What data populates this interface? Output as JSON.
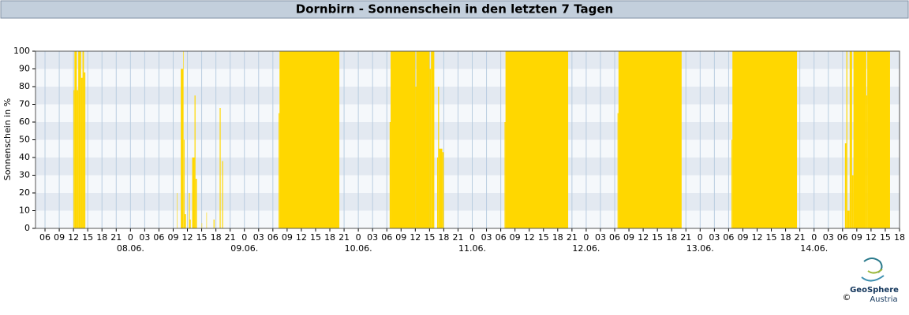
{
  "chart_data": {
    "type": "step-area",
    "title": "Dornbirn - Sonnenschein in den letzten 7 Tagen",
    "y_label": "Sonnenschein in %",
    "color": "#ffd700",
    "grid": true,
    "xlim": [
      -20,
      162
    ],
    "ylim": [
      0,
      100
    ],
    "yticks": [
      0,
      10,
      20,
      30,
      40,
      50,
      60,
      70,
      80,
      90,
      100
    ],
    "xticks": [
      {
        "value": -18,
        "label": "06"
      },
      {
        "value": -15,
        "label": "09"
      },
      {
        "value": -12,
        "label": "12"
      },
      {
        "value": -9,
        "label": "15"
      },
      {
        "value": -6,
        "label": "18"
      },
      {
        "value": -3,
        "label": "21"
      },
      {
        "value": 0,
        "label": "0"
      },
      {
        "value": 3,
        "label": "03"
      },
      {
        "value": 6,
        "label": "06"
      },
      {
        "value": 9,
        "label": "09"
      },
      {
        "value": 12,
        "label": "12"
      },
      {
        "value": 15,
        "label": "15"
      },
      {
        "value": 18,
        "label": "18"
      },
      {
        "value": 21,
        "label": "21"
      },
      {
        "value": 24,
        "label": "0"
      },
      {
        "value": 27,
        "label": "03"
      },
      {
        "value": 30,
        "label": "06"
      },
      {
        "value": 33,
        "label": "09"
      },
      {
        "value": 36,
        "label": "12"
      },
      {
        "value": 39,
        "label": "15"
      },
      {
        "value": 42,
        "label": "18"
      },
      {
        "value": 45,
        "label": "21"
      },
      {
        "value": 48,
        "label": "0"
      },
      {
        "value": 51,
        "label": "03"
      },
      {
        "value": 54,
        "label": "06"
      },
      {
        "value": 57,
        "label": "09"
      },
      {
        "value": 60,
        "label": "12"
      },
      {
        "value": 63,
        "label": "15"
      },
      {
        "value": 66,
        "label": "18"
      },
      {
        "value": 69,
        "label": "21"
      },
      {
        "value": 72,
        "label": "0"
      },
      {
        "value": 75,
        "label": "03"
      },
      {
        "value": 78,
        "label": "06"
      },
      {
        "value": 81,
        "label": "09"
      },
      {
        "value": 84,
        "label": "12"
      },
      {
        "value": 87,
        "label": "15"
      },
      {
        "value": 90,
        "label": "18"
      },
      {
        "value": 93,
        "label": "21"
      },
      {
        "value": 96,
        "label": "0"
      },
      {
        "value": 99,
        "label": "03"
      },
      {
        "value": 102,
        "label": "06"
      },
      {
        "value": 105,
        "label": "09"
      },
      {
        "value": 108,
        "label": "12"
      },
      {
        "value": 111,
        "label": "15"
      },
      {
        "value": 114,
        "label": "18"
      },
      {
        "value": 117,
        "label": "21"
      },
      {
        "value": 120,
        "label": "0"
      },
      {
        "value": 123,
        "label": "03"
      },
      {
        "value": 126,
        "label": "06"
      },
      {
        "value": 129,
        "label": "09"
      },
      {
        "value": 132,
        "label": "12"
      },
      {
        "value": 135,
        "label": "15"
      },
      {
        "value": 138,
        "label": "18"
      },
      {
        "value": 141,
        "label": "21"
      },
      {
        "value": 144,
        "label": "0"
      },
      {
        "value": 147,
        "label": "03"
      },
      {
        "value": 150,
        "label": "06"
      },
      {
        "value": 153,
        "label": "09"
      },
      {
        "value": 156,
        "label": "12"
      },
      {
        "value": 159,
        "label": "15"
      },
      {
        "value": 162,
        "label": "18"
      }
    ],
    "date_ticks": [
      {
        "value": 0,
        "label": "08.06."
      },
      {
        "value": 24,
        "label": "09.06."
      },
      {
        "value": 48,
        "label": "10.06."
      },
      {
        "value": 72,
        "label": "11.06."
      },
      {
        "value": 96,
        "label": "12.06."
      },
      {
        "value": 120,
        "label": "13.06."
      },
      {
        "value": 144,
        "label": "14.06."
      }
    ],
    "x": [
      -12.1,
      -12,
      -11.8,
      -11.3,
      -11,
      -10.4,
      -10.1,
      -9.8,
      -9.5,
      9.8,
      9.9,
      10.6,
      11.1,
      11.2,
      11.4,
      11.7,
      12.3,
      12.5,
      12.7,
      13.0,
      13.5,
      13.7,
      14.0,
      15.0,
      15.1,
      16.0,
      16.1,
      17.5,
      17.7,
      18.8,
      19.0,
      19.3,
      19.5,
      31.2,
      31.4,
      44.0,
      54.6,
      54.8,
      60.0,
      60.2,
      63.0,
      63.3,
      64.0,
      64.6,
      64.8,
      65.0,
      65.7,
      66.0,
      78.8,
      79.0,
      92.2,
      102.6,
      102.8,
      116.1,
      126.6,
      126.8,
      140.4,
      150.5,
      150.8,
      151.0,
      151.5,
      152.0,
      152.3,
      155,
      155.2,
      160.0
    ],
    "values": [
      0,
      78,
      100,
      78,
      100,
      85,
      100,
      88,
      0,
      20,
      0,
      90,
      100,
      50,
      8,
      0,
      20,
      5,
      0,
      40,
      75,
      28,
      0,
      3,
      0,
      9,
      0,
      5,
      0,
      68,
      0,
      38,
      0,
      65,
      100,
      0,
      60,
      100,
      80,
      100,
      90,
      100,
      0,
      40,
      80,
      45,
      43,
      0,
      60,
      100,
      0,
      65,
      100,
      0,
      50,
      100,
      0,
      48,
      100,
      10,
      100,
      30,
      100,
      75,
      100,
      0
    ]
  },
  "logo": {
    "name": "GeoSphere",
    "sub": "Austria",
    "copyright": "©"
  }
}
